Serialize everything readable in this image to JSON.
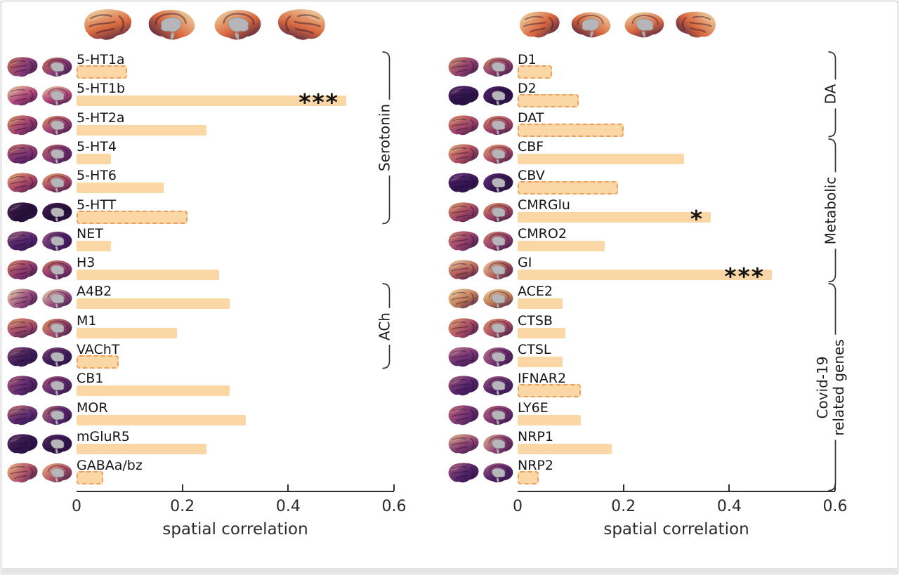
{
  "figure_caption": "spatial correlation bar charts with brain surface maps",
  "colors": {
    "bar_fill": "#fbd7a6",
    "bar_dash_edge": "#eca05f",
    "axis": "#2d2d2d",
    "background": "#ffffff",
    "medial_gray": "#b6b6ba"
  },
  "header_maps": {
    "views": [
      "lateral-left",
      "medial-left",
      "medial-right",
      "lateral-right"
    ],
    "colors": [
      "#f3e2b0",
      "#d8693f"
    ]
  },
  "chart_data": [
    {
      "type": "bar",
      "orientation": "horizontal",
      "title": "",
      "xlabel": "spatial correlation",
      "xlim": [
        0,
        0.6
      ],
      "xticks": [
        "0",
        "0.2",
        "0.4",
        "0.6"
      ],
      "grid": false,
      "categories": [
        "5-HT1a",
        "5-HT1b",
        "5-HT2a",
        "5-HT4",
        "5-HT6",
        "5-HTT",
        "NET",
        "H3",
        "A4B2",
        "M1",
        "VAChT",
        "CB1",
        "MOR",
        "mGluR5",
        "GABAa/bz"
      ],
      "values": [
        0.095,
        0.51,
        0.245,
        0.065,
        0.165,
        0.21,
        0.065,
        0.27,
        0.29,
        0.19,
        0.08,
        0.29,
        0.32,
        0.245,
        0.05
      ],
      "bar_styles": [
        "dashed",
        "solid",
        "solid",
        "solid",
        "solid",
        "dashed",
        "solid",
        "solid",
        "solid",
        "solid",
        "dashed",
        "solid",
        "solid",
        "solid",
        "dashed"
      ],
      "significance": [
        "",
        "***",
        "",
        "",
        "",
        "",
        "",
        "",
        "",
        "",
        "",
        "",
        "",
        "",
        ""
      ],
      "groups": [
        {
          "label": "Serotonin",
          "lines": [
            "Serotonin"
          ],
          "start": 0,
          "end": 5
        },
        {
          "label": "ACh",
          "lines": [
            "ACh"
          ],
          "start": 8,
          "end": 10
        }
      ],
      "icon_colors": [
        [
          "#c96a4e",
          "#8a3d78"
        ],
        [
          "#edd3a0",
          "#b0457a"
        ],
        [
          "#e0925f",
          "#9c3f72"
        ],
        [
          "#c06a60",
          "#7c3372"
        ],
        [
          "#e8a468",
          "#a84568"
        ],
        [
          "#4a2358",
          "#241038"
        ],
        [
          "#9a5a80",
          "#4f2368"
        ],
        [
          "#d27a5c",
          "#8f3a70"
        ],
        [
          "#f0dcad",
          "#9a4f80"
        ],
        [
          "#dd8f62",
          "#a04a6a"
        ],
        [
          "#8a4a78",
          "#3c1c58"
        ],
        [
          "#b05578",
          "#5e2a6e"
        ],
        [
          "#c3766a",
          "#5c2a72"
        ],
        [
          "#5e2c6a",
          "#2e1448"
        ],
        [
          "#eeb27a",
          "#b25568"
        ]
      ]
    },
    {
      "type": "bar",
      "orientation": "horizontal",
      "title": "",
      "xlabel": "spatial correlation",
      "xlim": [
        0,
        0.6
      ],
      "xticks": [
        "0",
        "0.2",
        "0.4",
        "0.6"
      ],
      "grid": false,
      "categories": [
        "D1",
        "D2",
        "DAT",
        "CBF",
        "CBV",
        "CMRGlu",
        "CMRO2",
        "GI",
        "ACE2",
        "CTSB",
        "CTSL",
        "IFNAR2",
        "LY6E",
        "NRP1",
        "NRP2"
      ],
      "values": [
        0.065,
        0.115,
        0.2,
        0.315,
        0.19,
        0.365,
        0.165,
        0.48,
        0.085,
        0.09,
        0.085,
        0.12,
        0.12,
        0.178,
        0.04
      ],
      "bar_styles": [
        "dashed",
        "dashed",
        "dashed",
        "solid",
        "dashed",
        "solid",
        "solid",
        "solid",
        "solid",
        "solid",
        "solid",
        "dashed",
        "solid",
        "solid",
        "dashed"
      ],
      "significance": [
        "",
        "",
        "",
        "",
        "",
        "*",
        "",
        "***",
        "",
        "",
        "",
        "",
        "",
        "",
        ""
      ],
      "groups": [
        {
          "label": "DA",
          "lines": [
            "DA"
          ],
          "start": 0,
          "end": 2
        },
        {
          "label": "Metabolic",
          "lines": [
            "Metabolic"
          ],
          "start": 3,
          "end": 7
        },
        {
          "label": "Covid-19 related genes",
          "lines": [
            "Covid-19",
            "related genes"
          ],
          "start": 8,
          "end": 14,
          "extend_to_axis": true
        }
      ],
      "icon_colors": [
        [
          "#d08a60",
          "#90406e"
        ],
        [
          "#5c2a70",
          "#2c1348"
        ],
        [
          "#da8f63",
          "#a04468"
        ],
        [
          "#e8a873",
          "#aa4c62"
        ],
        [
          "#6a3080",
          "#321550"
        ],
        [
          "#e09a64",
          "#9e4462"
        ],
        [
          "#d4806a",
          "#943f6a"
        ],
        [
          "#eecf9a",
          "#b05a58"
        ],
        [
          "#f0d7a2",
          "#c07a58"
        ],
        [
          "#e09a68",
          "#a84e64"
        ],
        [
          "#c4728a",
          "#6e3070"
        ],
        [
          "#a85a80",
          "#54246a"
        ],
        [
          "#c4687a",
          "#743272"
        ],
        [
          "#e8b887",
          "#8a3f74"
        ],
        [
          "#b06086",
          "#502366"
        ]
      ]
    }
  ]
}
